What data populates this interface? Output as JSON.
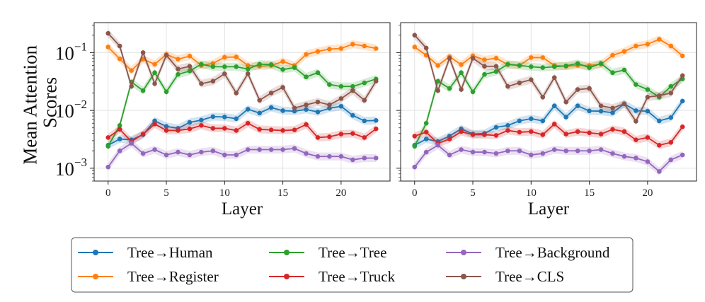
{
  "chart_data": {
    "type": "line",
    "ylabel": "Mean Attention Scores",
    "yscale": "log",
    "ylim": [
      0.0006,
      0.33
    ],
    "xlim": [
      -1.2,
      24.2
    ],
    "xticks": [
      0,
      5,
      10,
      15,
      20
    ],
    "yticks": [
      {
        "value": 0.001,
        "base": "10",
        "exp": "−3"
      },
      {
        "value": 0.01,
        "base": "10",
        "exp": "−2"
      },
      {
        "value": 0.1,
        "base": "10",
        "exp": "−1"
      }
    ],
    "series_colors": {
      "Tree→Human": "#1f77b4",
      "Tree→Register": "#ff7f0e",
      "Tree→Tree": "#2ca02c",
      "Tree→Truck": "#d62728",
      "Tree→Background": "#9467bd",
      "Tree→CLS": "#8c564b"
    },
    "legend": [
      "Tree→Human",
      "Tree→Tree",
      "Tree→Background",
      "Tree→Register",
      "Tree→Truck",
      "Tree→CLS"
    ],
    "x": [
      0,
      1,
      2,
      3,
      4,
      5,
      6,
      7,
      8,
      9,
      10,
      11,
      12,
      13,
      14,
      15,
      16,
      17,
      18,
      19,
      20,
      21,
      22,
      23
    ],
    "panels": [
      {
        "xlabel": "Layer",
        "series": [
          {
            "name": "Tree→Human",
            "values": [
              0.0025,
              0.0032,
              0.0031,
              0.0038,
              0.0066,
              0.0053,
              0.0049,
              0.0062,
              0.0068,
              0.0078,
              0.0077,
              0.0072,
              0.0105,
              0.009,
              0.0112,
              0.0099,
              0.0097,
              0.0104,
              0.0094,
              0.0109,
              0.0118,
              0.0082,
              0.0066,
              0.0067
            ]
          },
          {
            "name": "Tree→Register",
            "values": [
              0.125,
              0.078,
              0.049,
              0.077,
              0.063,
              0.093,
              0.077,
              0.087,
              0.06,
              0.065,
              0.083,
              0.084,
              0.06,
              0.058,
              0.06,
              0.07,
              0.06,
              0.093,
              0.105,
              0.115,
              0.118,
              0.14,
              0.13,
              0.118
            ]
          },
          {
            "name": "Tree→Tree",
            "values": [
              0.0024,
              0.0055,
              0.031,
              0.022,
              0.045,
              0.021,
              0.042,
              0.048,
              0.063,
              0.057,
              0.057,
              0.057,
              0.052,
              0.063,
              0.062,
              0.051,
              0.055,
              0.038,
              0.045,
              0.028,
              0.026,
              0.026,
              0.03,
              0.035
            ]
          },
          {
            "name": "Tree→Truck",
            "values": [
              0.0034,
              0.0047,
              0.0029,
              0.0039,
              0.0058,
              0.0045,
              0.0045,
              0.0048,
              0.0055,
              0.0049,
              0.0049,
              0.0045,
              0.006,
              0.0047,
              0.0046,
              0.0045,
              0.0046,
              0.0057,
              0.0034,
              0.0035,
              0.0039,
              0.004,
              0.0034,
              0.0048
            ]
          },
          {
            "name": "Tree→Background",
            "values": [
              0.00105,
              0.002,
              0.0027,
              0.0018,
              0.0021,
              0.0017,
              0.0019,
              0.0017,
              0.0019,
              0.002,
              0.0017,
              0.0017,
              0.0021,
              0.0021,
              0.0021,
              0.0021,
              0.0022,
              0.0018,
              0.0016,
              0.0016,
              0.0016,
              0.0014,
              0.0015,
              0.0015
            ]
          },
          {
            "name": "Tree→CLS",
            "values": [
              0.215,
              0.13,
              0.026,
              0.1,
              0.029,
              0.09,
              0.052,
              0.058,
              0.029,
              0.032,
              0.043,
              0.02,
              0.043,
              0.015,
              0.02,
              0.025,
              0.011,
              0.0125,
              0.014,
              0.0125,
              0.016,
              0.022,
              0.015,
              0.032
            ]
          }
        ]
      },
      {
        "xlabel": "Layer",
        "series": [
          {
            "name": "Tree→Human",
            "values": [
              0.0025,
              0.0032,
              0.0029,
              0.0036,
              0.0048,
              0.0039,
              0.004,
              0.0051,
              0.0055,
              0.0066,
              0.0072,
              0.0066,
              0.012,
              0.0077,
              0.012,
              0.0098,
              0.0097,
              0.0091,
              0.013,
              0.0099,
              0.0097,
              0.0066,
              0.0075,
              0.0145
            ]
          },
          {
            "name": "Tree→Register",
            "values": [
              0.125,
              0.09,
              0.06,
              0.085,
              0.062,
              0.088,
              0.075,
              0.08,
              0.062,
              0.06,
              0.082,
              0.082,
              0.06,
              0.058,
              0.06,
              0.06,
              0.063,
              0.09,
              0.105,
              0.13,
              0.14,
              0.17,
              0.13,
              0.088
            ]
          },
          {
            "name": "Tree→Tree",
            "values": [
              0.0024,
              0.006,
              0.032,
              0.024,
              0.045,
              0.021,
              0.042,
              0.047,
              0.063,
              0.06,
              0.057,
              0.055,
              0.057,
              0.059,
              0.065,
              0.055,
              0.065,
              0.045,
              0.05,
              0.028,
              0.023,
              0.017,
              0.026,
              0.035
            ]
          },
          {
            "name": "Tree→Truck",
            "values": [
              0.0036,
              0.0042,
              0.0027,
              0.0032,
              0.0043,
              0.0038,
              0.0038,
              0.0037,
              0.0045,
              0.0042,
              0.0043,
              0.0038,
              0.0058,
              0.0039,
              0.0043,
              0.0041,
              0.0039,
              0.0047,
              0.0043,
              0.0031,
              0.0034,
              0.0025,
              0.0028,
              0.0052
            ]
          },
          {
            "name": "Tree→Background",
            "values": [
              0.00105,
              0.0019,
              0.0025,
              0.0017,
              0.0021,
              0.0019,
              0.0019,
              0.0018,
              0.002,
              0.002,
              0.0017,
              0.0018,
              0.0021,
              0.002,
              0.002,
              0.002,
              0.0021,
              0.0018,
              0.0016,
              0.0015,
              0.0013,
              0.00088,
              0.0014,
              0.0017
            ]
          },
          {
            "name": "Tree→CLS",
            "values": [
              0.2,
              0.12,
              0.022,
              0.08,
              0.023,
              0.08,
              0.058,
              0.058,
              0.026,
              0.03,
              0.034,
              0.017,
              0.037,
              0.014,
              0.023,
              0.024,
              0.012,
              0.011,
              0.013,
              0.0065,
              0.017,
              0.018,
              0.02,
              0.04
            ]
          }
        ]
      }
    ]
  }
}
